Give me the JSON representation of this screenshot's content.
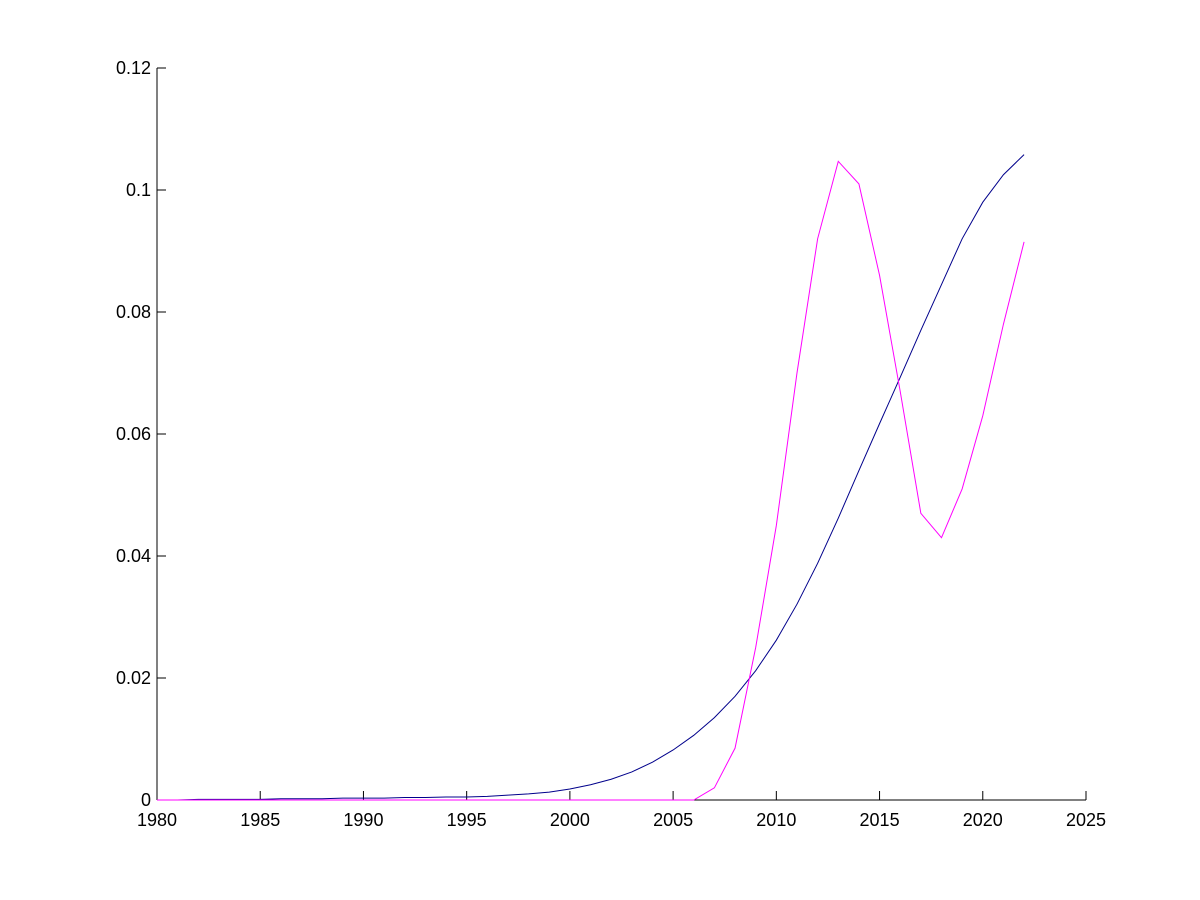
{
  "chart_data": {
    "type": "line",
    "x": [
      1980,
      1981,
      1982,
      1983,
      1984,
      1985,
      1986,
      1987,
      1988,
      1989,
      1990,
      1991,
      1992,
      1993,
      1994,
      1995,
      1996,
      1997,
      1998,
      1999,
      2000,
      2001,
      2002,
      2003,
      2004,
      2005,
      2006,
      2007,
      2008,
      2009,
      2010,
      2011,
      2012,
      2013,
      2014,
      2015,
      2016,
      2017,
      2018,
      2019,
      2020,
      2021,
      2022
    ],
    "series": [
      {
        "color": "#00008b",
        "values": [
          0.0,
          0.0,
          0.0001,
          0.0001,
          0.0001,
          0.0001,
          0.0002,
          0.0002,
          0.0002,
          0.0003,
          0.0003,
          0.0003,
          0.0004,
          0.0004,
          0.0005,
          0.0005,
          0.0006,
          0.0008,
          0.001,
          0.0013,
          0.0018,
          0.0025,
          0.0034,
          0.0046,
          0.0062,
          0.0082,
          0.0106,
          0.0135,
          0.017,
          0.0212,
          0.0262,
          0.0321,
          0.0388,
          0.0462,
          0.054,
          0.0617,
          0.0693,
          0.077,
          0.0845,
          0.092,
          0.098,
          0.1025,
          0.1058
        ]
      },
      {
        "color": "#ff00ff",
        "values": [
          0,
          0,
          0,
          0,
          0,
          0,
          0,
          0,
          0,
          0,
          0,
          0,
          0,
          0,
          0,
          0,
          0,
          0,
          0,
          0,
          0,
          0,
          0,
          0,
          0,
          0,
          0,
          0.002,
          0.0085,
          0.025,
          0.045,
          0.07,
          0.092,
          0.1047,
          0.101,
          0.086,
          0.067,
          0.047,
          0.043,
          0.051,
          0.063,
          0.078,
          0.0915
        ]
      }
    ],
    "xlim": [
      1980,
      2025
    ],
    "xticks": [
      1980,
      1985,
      1990,
      1995,
      2000,
      2005,
      2010,
      2015,
      2020,
      2025
    ],
    "ylim": [
      0,
      0.12
    ],
    "yticks": [
      0,
      0.02,
      0.04,
      0.06,
      0.08,
      0.1,
      0.12
    ],
    "grid": false
  }
}
